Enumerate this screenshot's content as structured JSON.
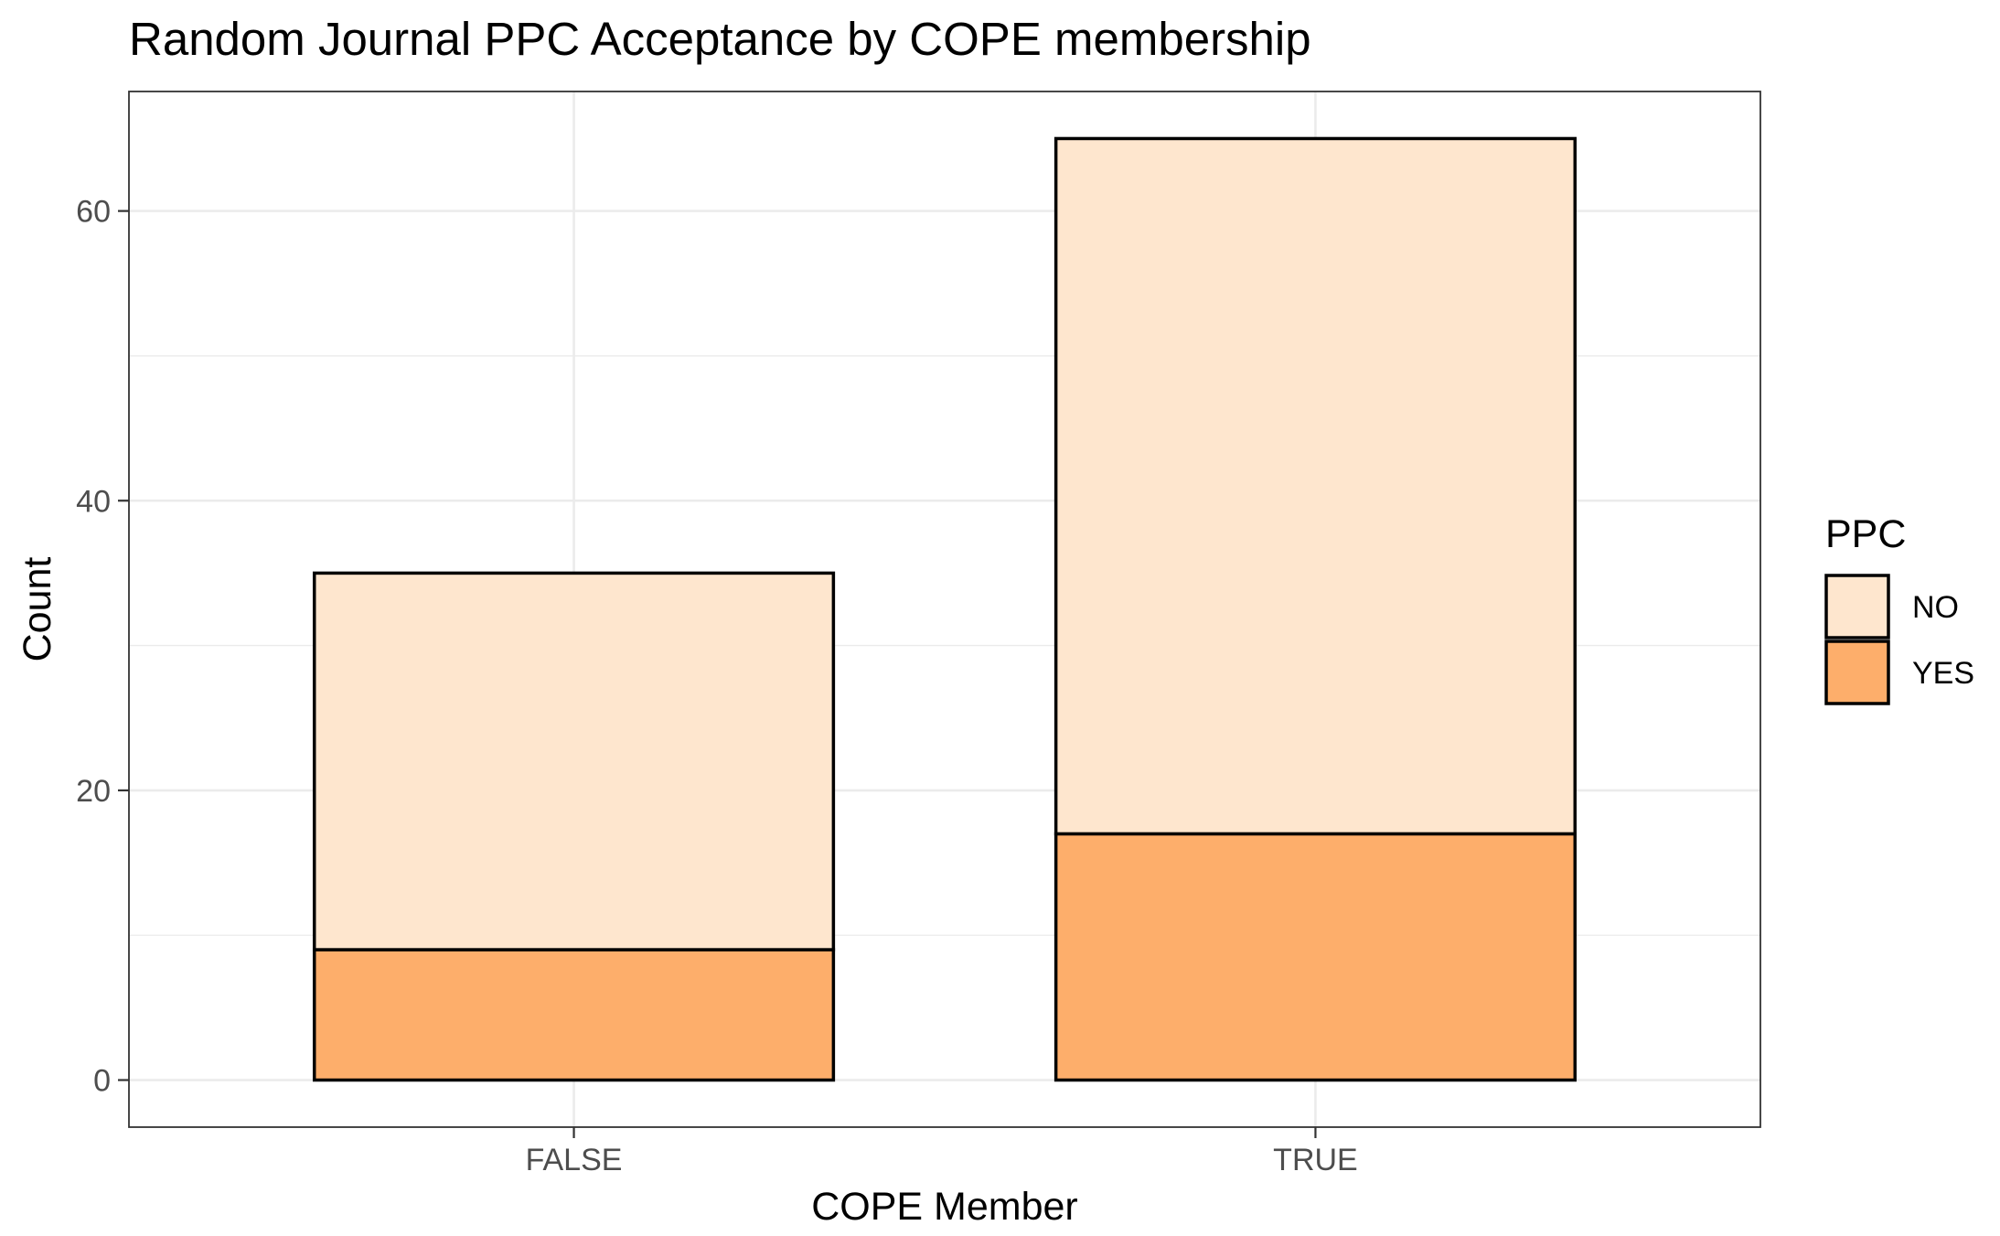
{
  "chart_data": {
    "type": "bar",
    "stacked": true,
    "title": "Random Journal PPC Acceptance by COPE membership",
    "xlabel": "COPE Member",
    "ylabel": "Count",
    "categories": [
      "FALSE",
      "TRUE"
    ],
    "series": [
      {
        "name": "NO",
        "values": [
          26,
          48
        ],
        "color": "#fee6ce"
      },
      {
        "name": "YES",
        "values": [
          9,
          17
        ],
        "color": "#fdae6b"
      }
    ],
    "stack_order_bottom_to_top": [
      "YES",
      "NO"
    ],
    "ylim": [
      -3.25,
      68.25
    ],
    "y_ticks": [
      0,
      20,
      40,
      60
    ],
    "y_tick_labels": [
      "0",
      "20",
      "40",
      "60"
    ],
    "grid": true,
    "legend": {
      "title": "PPC",
      "position": "right",
      "entries": [
        "NO",
        "YES"
      ]
    }
  }
}
